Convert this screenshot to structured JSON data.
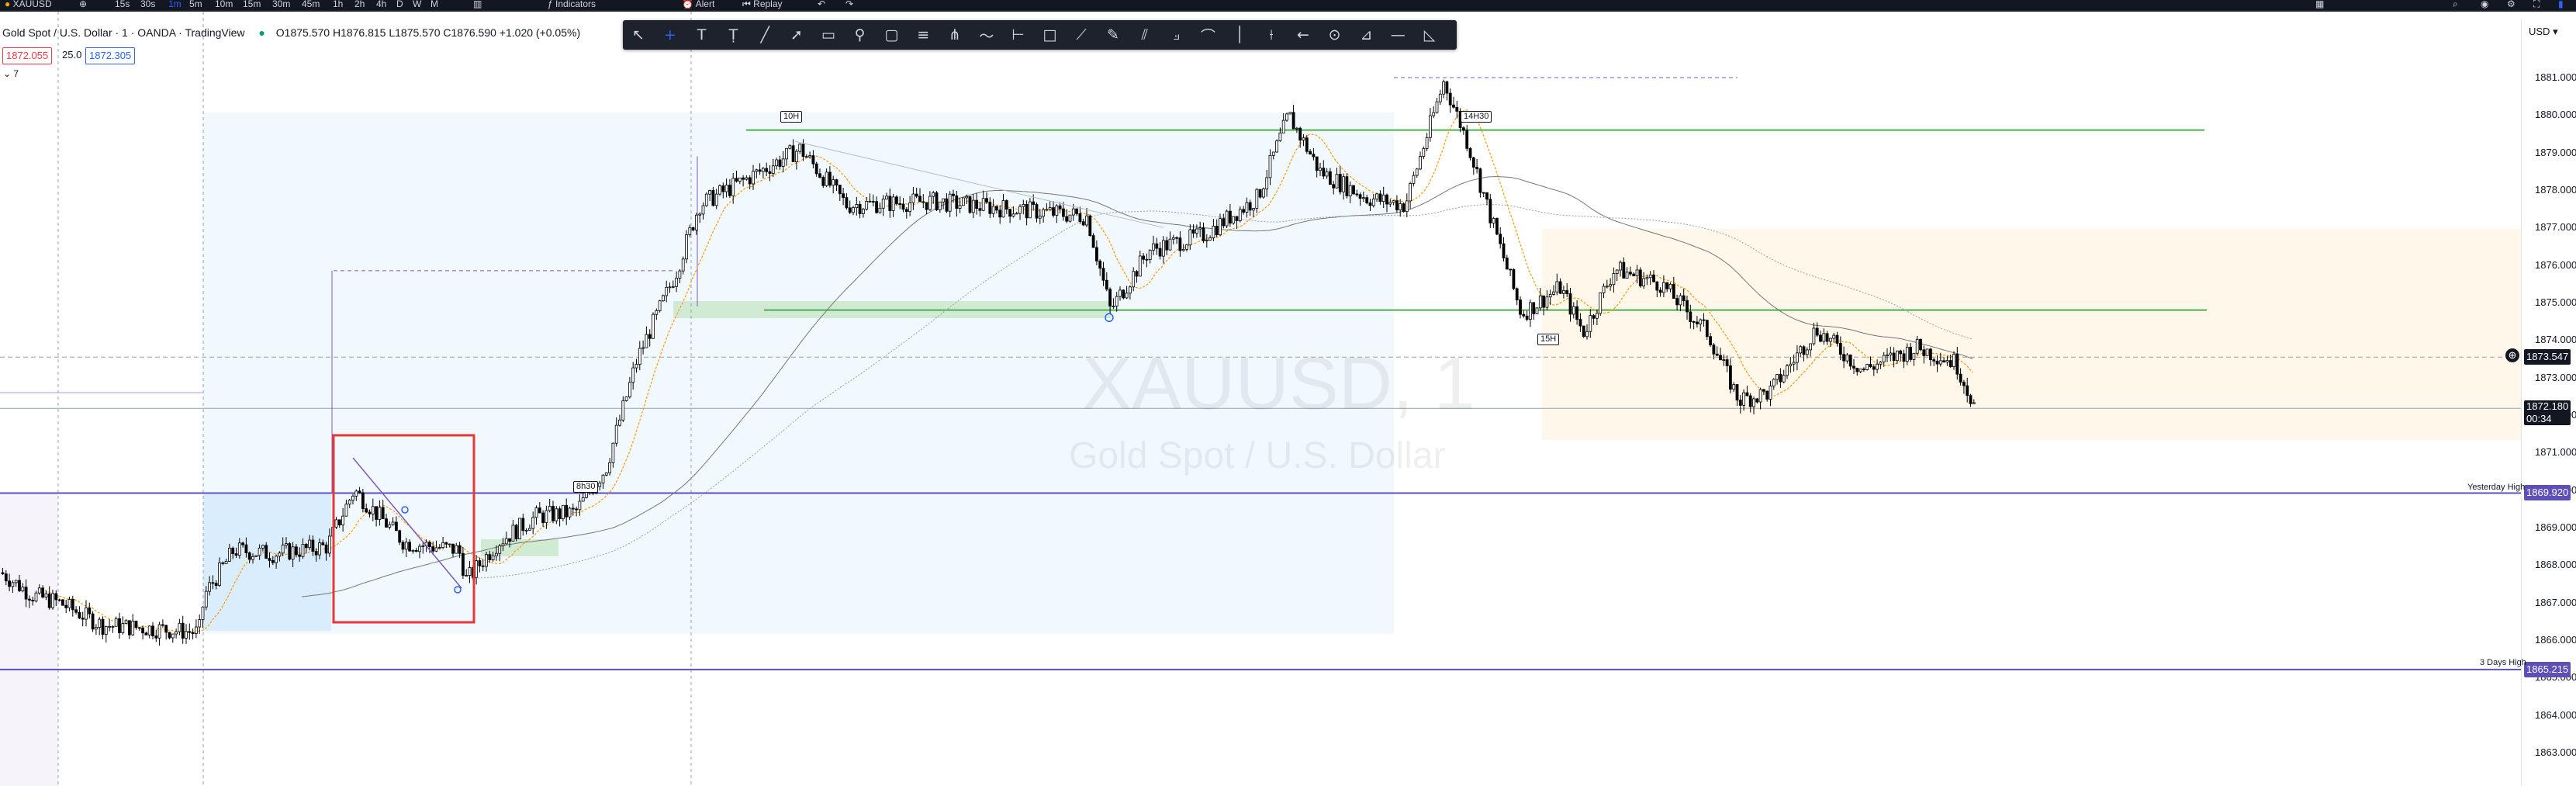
{
  "topbar": {
    "symbol": "XAUUSD",
    "intervals": [
      "15s",
      "30s",
      "1m",
      "5m",
      "10m",
      "15m",
      "30m",
      "45m",
      "1h",
      "2h",
      "4h",
      "D",
      "W",
      "M"
    ],
    "active_interval": "1m",
    "indicators_label": "Indicators",
    "alert_label": "Alert",
    "replay_label": "Replay",
    "currency": "USD"
  },
  "legend": {
    "symbol_title": "Gold Spot / U.S. Dollar · 1 · OANDA · TradingView",
    "ohlc": "O1875.570 H1876.815 L1875.570 C1876.590 +1.020 (+0.05%)",
    "bid": "1872.055",
    "spread": "25.0",
    "ask": "1872.305",
    "collapse_count": "7"
  },
  "price_axis": {
    "labels": [
      "1881.000",
      "1880.000",
      "1879.000",
      "1878.000",
      "1877.000",
      "1876.000",
      "1875.000",
      "1874.000",
      "1873.000",
      "1872.000",
      "1871.000",
      "1870.000",
      "1869.000",
      "1868.000",
      "1867.000",
      "1866.000",
      "1865.000",
      "1864.000",
      "1863.000"
    ],
    "crosshair_price": "1873.547",
    "last_price": "1872.180",
    "countdown": "00:34",
    "yesterday_high_label": "Yesterday High",
    "yesterday_high_price": "1869.920",
    "three_days_high_label": "3 Days High",
    "three_days_high_price": "1865.215"
  },
  "chart": {
    "watermark_symbol": "XAUUSD, 1",
    "watermark_name": "Gold Spot / U.S. Dollar",
    "callouts": [
      "10H",
      "14H30",
      "8h30",
      "15H"
    ]
  },
  "colors": {
    "up": "#ffffff",
    "down": "#000000",
    "green_level": "#4caf50",
    "purple_level": "#5d4fb8",
    "red_box": "#e53935",
    "accent": "#2962ff"
  }
}
